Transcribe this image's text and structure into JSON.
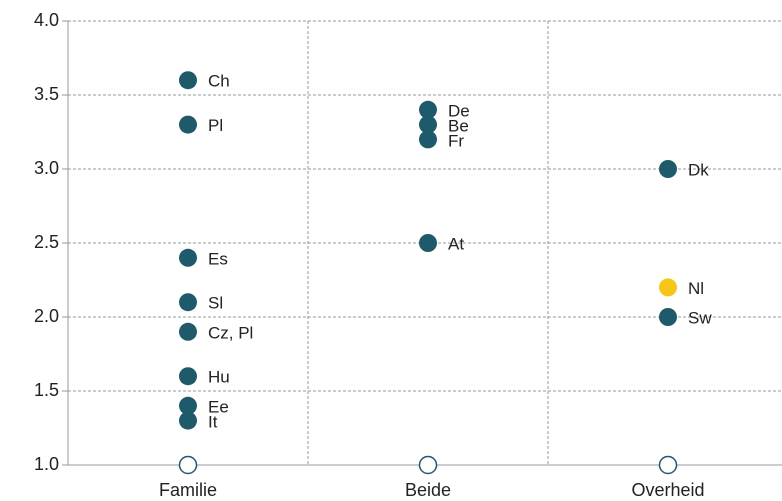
{
  "chart_data": {
    "type": "dot",
    "categories": [
      "Familie",
      "Beide",
      "Overheid"
    ],
    "ylim": [
      1,
      4
    ],
    "yticks": [
      {
        "value": 1,
        "label": "1.0"
      },
      {
        "value": 1.5,
        "label": "1.5"
      },
      {
        "value": 2,
        "label": "2.0"
      },
      {
        "value": 2.5,
        "label": "2.5"
      },
      {
        "value": 3,
        "label": "3.0"
      },
      {
        "value": 3.5,
        "label": "3.5"
      },
      {
        "value": 4,
        "label": "4.0"
      }
    ],
    "grid": true,
    "series": [
      {
        "color": "#1f5a6b",
        "filled": true,
        "x": [
          "Familie",
          "Familie",
          "Familie",
          "Familie",
          "Familie",
          "Familie",
          "Familie",
          "Familie",
          "Beide",
          "Beide",
          "Beide",
          "Beide",
          "Overheid",
          "Overheid"
        ],
        "values": [
          3.6,
          3.3,
          2.4,
          2.1,
          1.9,
          1.6,
          1.4,
          1.3,
          3.4,
          3.3,
          3.2,
          2.5,
          3.0,
          2.0
        ],
        "labels": [
          "Ch",
          "Pl",
          "Es",
          "Sl",
          "Cz, Pl",
          "Hu",
          "Ee",
          "It",
          "De",
          "Be",
          "Fr",
          "At",
          "Dk",
          "Sw"
        ]
      },
      {
        "color": "#f5c518",
        "filled": true,
        "x": [
          "Overheid"
        ],
        "values": [
          2.2
        ],
        "labels": [
          "Nl"
        ]
      },
      {
        "color": "#1f5a6b",
        "filled": false,
        "x": [
          "Familie",
          "Beide",
          "Overheid"
        ],
        "values": [
          1,
          1,
          1
        ]
      }
    ]
  }
}
